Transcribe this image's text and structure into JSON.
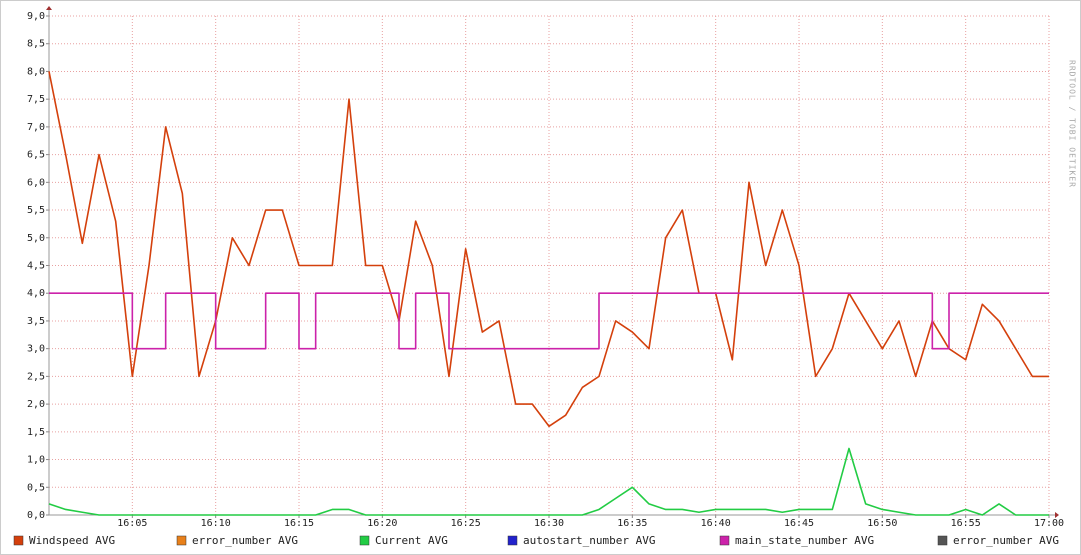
{
  "chart_data": {
    "type": "line",
    "watermark": "RRDTOOL / TOBI OETIKER",
    "x": [
      "16:00",
      "16:01",
      "16:02",
      "16:03",
      "16:04",
      "16:05",
      "16:06",
      "16:07",
      "16:08",
      "16:09",
      "16:10",
      "16:11",
      "16:12",
      "16:13",
      "16:14",
      "16:15",
      "16:16",
      "16:17",
      "16:18",
      "16:19",
      "16:20",
      "16:21",
      "16:22",
      "16:23",
      "16:24",
      "16:25",
      "16:26",
      "16:27",
      "16:28",
      "16:29",
      "16:30",
      "16:31",
      "16:32",
      "16:33",
      "16:34",
      "16:35",
      "16:36",
      "16:37",
      "16:38",
      "16:39",
      "16:40",
      "16:41",
      "16:42",
      "16:43",
      "16:44",
      "16:45",
      "16:46",
      "16:47",
      "16:48",
      "16:49",
      "16:50",
      "16:51",
      "16:52",
      "16:53",
      "16:54",
      "16:55",
      "16:56",
      "16:57",
      "16:58",
      "16:59",
      "17:00"
    ],
    "xlim": [
      "16:00",
      "17:00"
    ],
    "xticks": [
      "16:05",
      "16:10",
      "16:15",
      "16:20",
      "16:25",
      "16:30",
      "16:35",
      "16:40",
      "16:45",
      "16:50",
      "16:55",
      "17:00"
    ],
    "ylim": [
      0,
      9
    ],
    "yticks": [
      {
        "value": 0,
        "label": "0,0"
      },
      {
        "value": 0.5,
        "label": "0,5"
      },
      {
        "value": 1,
        "label": "1,0"
      },
      {
        "value": 1.5,
        "label": "1,5"
      },
      {
        "value": 2,
        "label": "2,0"
      },
      {
        "value": 2.5,
        "label": "2,5"
      },
      {
        "value": 3,
        "label": "3,0"
      },
      {
        "value": 3.5,
        "label": "3,5"
      },
      {
        "value": 4,
        "label": "4,0"
      },
      {
        "value": 4.5,
        "label": "4,5"
      },
      {
        "value": 5,
        "label": "5,0"
      },
      {
        "value": 5.5,
        "label": "5,5"
      },
      {
        "value": 6,
        "label": "6,0"
      },
      {
        "value": 6.5,
        "label": "6,5"
      },
      {
        "value": 7,
        "label": "7,0"
      },
      {
        "value": 7.5,
        "label": "7,5"
      },
      {
        "value": 8,
        "label": "8,0"
      },
      {
        "value": 8.5,
        "label": "8,5"
      },
      {
        "value": 9,
        "label": "9,0"
      }
    ],
    "grid": true,
    "series": [
      {
        "name": "Windspeed AVG",
        "color": "#d4400c",
        "values": [
          8.0,
          6.5,
          4.9,
          6.5,
          5.3,
          2.5,
          4.5,
          7.0,
          5.8,
          2.5,
          3.5,
          5.0,
          4.5,
          5.5,
          5.5,
          4.5,
          4.5,
          4.5,
          7.5,
          4.5,
          4.5,
          3.5,
          5.3,
          4.5,
          2.5,
          4.8,
          3.3,
          3.5,
          2.0,
          2.0,
          1.6,
          1.8,
          2.3,
          2.5,
          3.5,
          3.3,
          3.0,
          5.0,
          5.5,
          4.0,
          4.0,
          2.8,
          6.0,
          4.5,
          5.5,
          4.5,
          2.5,
          3.0,
          4.0,
          3.5,
          3.0,
          3.5,
          2.5,
          3.5,
          3.0,
          2.8,
          3.8,
          3.5,
          3.0,
          2.5,
          2.5
        ]
      },
      {
        "name": "error_number AVG",
        "color": "#e8801a",
        "values": [
          null,
          null,
          null,
          null,
          null,
          null,
          null,
          null,
          null,
          null,
          null,
          null,
          null,
          null,
          null,
          null,
          null,
          null,
          null,
          null,
          null,
          null,
          null,
          null,
          null,
          null,
          null,
          null,
          null,
          null,
          null,
          null,
          null,
          null,
          null,
          null,
          null,
          null,
          null,
          null,
          null,
          null,
          null,
          null,
          null,
          null,
          null,
          null,
          null,
          null,
          null,
          null,
          null,
          null,
          null,
          null,
          null,
          null,
          null,
          null,
          null
        ]
      },
      {
        "name": "Current AVG",
        "color": "#22cc44",
        "values": [
          0.2,
          0.1,
          0.05,
          0,
          0,
          0,
          0,
          0,
          0,
          0,
          0,
          0,
          0,
          0,
          0,
          0,
          0,
          0.1,
          0.1,
          0,
          0,
          0,
          0,
          0,
          0,
          0,
          0,
          0,
          0,
          0,
          0,
          0,
          0,
          0.1,
          0.3,
          0.5,
          0.2,
          0.1,
          0.1,
          0.05,
          0.1,
          0.1,
          0.1,
          0.1,
          0.05,
          0.1,
          0.1,
          0.1,
          1.2,
          0.2,
          0.1,
          0.05,
          0,
          0,
          0,
          0.1,
          0,
          0.2,
          0,
          0,
          0
        ]
      },
      {
        "name": "autostart_number AVG",
        "color": "#2222cc",
        "values": [
          null,
          null,
          null,
          null,
          null,
          null,
          null,
          null,
          null,
          null,
          null,
          null,
          null,
          null,
          null,
          null,
          null,
          null,
          null,
          null,
          null,
          null,
          null,
          null,
          null,
          null,
          null,
          null,
          null,
          null,
          null,
          null,
          null,
          null,
          null,
          null,
          null,
          null,
          null,
          null,
          null,
          null,
          null,
          null,
          null,
          null,
          null,
          null,
          null,
          null,
          null,
          null,
          null,
          null,
          null,
          null,
          null,
          null,
          null,
          null,
          null
        ]
      },
      {
        "name": "main_state_number AVG",
        "color": "#cc22aa",
        "step": true,
        "values": [
          4,
          4,
          4,
          4,
          4,
          3,
          3,
          4,
          4,
          4,
          3,
          3,
          3,
          4,
          4,
          3,
          4,
          4,
          4,
          4,
          4,
          3,
          4,
          4,
          3,
          3,
          3,
          3,
          3,
          3,
          3,
          3,
          3,
          4,
          4,
          4,
          4,
          4,
          4,
          4,
          4,
          4,
          4,
          4,
          4,
          4,
          4,
          4,
          4,
          4,
          4,
          4,
          4,
          3,
          4,
          4,
          4,
          4,
          4,
          4,
          4
        ]
      },
      {
        "name": "error_number AVG",
        "color": "#555555",
        "values": [
          null,
          null,
          null,
          null,
          null,
          null,
          null,
          null,
          null,
          null,
          null,
          null,
          null,
          null,
          null,
          null,
          null,
          null,
          null,
          null,
          null,
          null,
          null,
          null,
          null,
          null,
          null,
          null,
          null,
          null,
          null,
          null,
          null,
          null,
          null,
          null,
          null,
          null,
          null,
          null,
          null,
          null,
          null,
          null,
          null,
          null,
          null,
          null,
          null,
          null,
          null,
          null,
          null,
          null,
          null,
          null,
          null,
          null,
          null,
          null,
          null
        ]
      }
    ]
  }
}
